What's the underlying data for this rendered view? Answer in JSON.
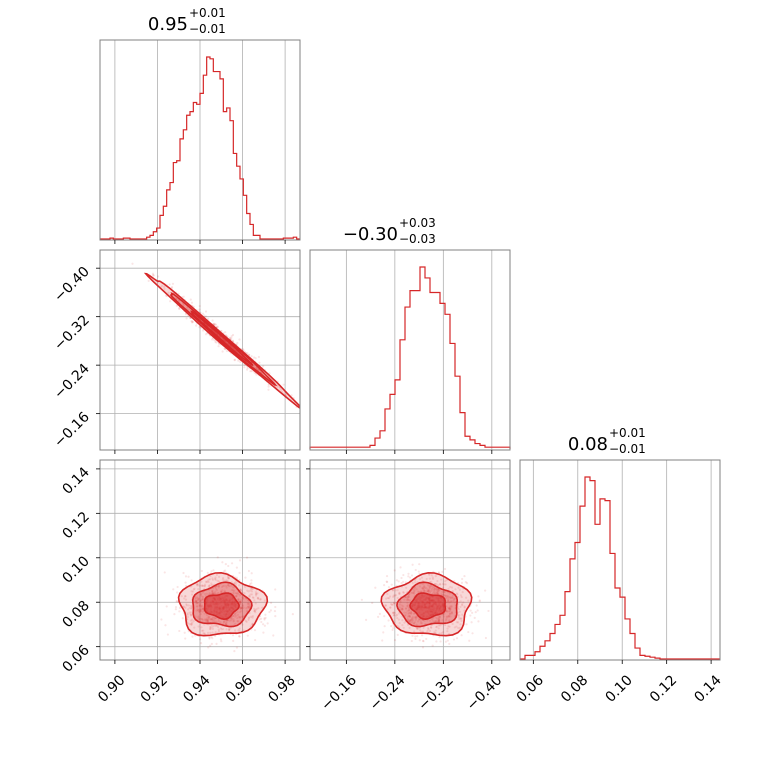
{
  "chart_data": {
    "type": "corner",
    "color": "#d62728",
    "parameters": [
      {
        "title_value": "0.95",
        "title_plus": "+0.01",
        "title_minus": "−0.01",
        "range": [
          0.893,
          0.987
        ]
      },
      {
        "title_value": "−0.30",
        "title_plus": "+0.03",
        "title_minus": "−0.03",
        "range": [
          -0.1,
          -0.43
        ]
      },
      {
        "title_value": "0.08",
        "title_plus": "+0.01",
        "title_minus": "−0.01",
        "range": [
          0.054,
          0.144
        ]
      }
    ],
    "ticks": {
      "p0": {
        "values": [
          0.9,
          0.92,
          0.94,
          0.96,
          0.98
        ],
        "labels": [
          "0.90",
          "0.92",
          "0.94",
          "0.96",
          "0.98"
        ]
      },
      "p1": {
        "values": [
          -0.4,
          -0.32,
          -0.24,
          -0.16
        ],
        "labels": [
          "−0.40",
          "−0.32",
          "−0.24",
          "−0.16"
        ]
      },
      "p2": {
        "values": [
          0.06,
          0.08,
          0.1,
          0.12,
          0.14
        ],
        "labels": [
          "0.06",
          "0.08",
          "0.10",
          "0.12",
          "0.14"
        ]
      }
    },
    "hist_p0": {
      "x_start": 0.893,
      "x_end": 0.987,
      "heights": [
        0,
        0,
        0,
        0.005,
        0,
        0,
        0,
        0.005,
        0.005,
        0,
        0,
        0,
        0,
        0,
        0.01,
        0.02,
        0.04,
        0.06,
        0.13,
        0.18,
        0.27,
        0.31,
        0.42,
        0.43,
        0.55,
        0.6,
        0.68,
        0.7,
        0.75,
        0.74,
        0.8,
        0.9,
        1.0,
        0.99,
        0.92,
        0.92,
        0.88,
        0.7,
        0.72,
        0.65,
        0.47,
        0.4,
        0.33,
        0.24,
        0.14,
        0.08,
        0.02,
        0.02,
        0,
        0,
        0,
        0,
        0,
        0,
        0,
        0.005,
        0.005,
        0.005,
        0.01,
        0
      ]
    },
    "hist_p1": {
      "x_start": -0.43,
      "x_end": -0.1,
      "heights": [
        0.01,
        0.01,
        0.01,
        0.01,
        0.01,
        0.02,
        0.03,
        0.05,
        0.07,
        0.2,
        0.4,
        0.58,
        0.74,
        0.8,
        0.86,
        0.86,
        0.94,
        1.0,
        0.87,
        0.87,
        0.78,
        0.6,
        0.38,
        0.3,
        0.22,
        0.1,
        0.06,
        0.02,
        0.01,
        0.01,
        0.01,
        0.01,
        0.01,
        0.01,
        0.01,
        0.01,
        0.01,
        0.01,
        0.01,
        0.01
      ]
    },
    "hist_p2": {
      "x_start": 0.054,
      "x_end": 0.144,
      "heights": [
        0,
        0.02,
        0.02,
        0.04,
        0.07,
        0.1,
        0.14,
        0.19,
        0.24,
        0.37,
        0.55,
        0.64,
        0.84,
        1.0,
        0.98,
        0.74,
        0.88,
        0.87,
        0.58,
        0.39,
        0.34,
        0.22,
        0.14,
        0.06,
        0.02,
        0.015,
        0.01,
        0.005,
        0,
        0,
        0,
        0,
        0,
        0,
        0,
        0,
        0,
        0,
        0,
        0
      ]
    },
    "density_p1_vs_p0": {
      "type": "correlated-ellipse",
      "center": [
        0.95,
        -0.285
      ],
      "slope": 3.05,
      "spread_x": 0.012,
      "spread_y": 0.007
    },
    "density_p2_vs_p0": {
      "type": "blob",
      "center": [
        0.95,
        0.0785
      ],
      "spread_x": 0.0095,
      "spread_y": 0.0065
    },
    "density_p2_vs_p1": {
      "type": "blob",
      "center": [
        -0.295,
        0.0785
      ],
      "spread_x": 0.034,
      "spread_y": 0.0065
    }
  }
}
